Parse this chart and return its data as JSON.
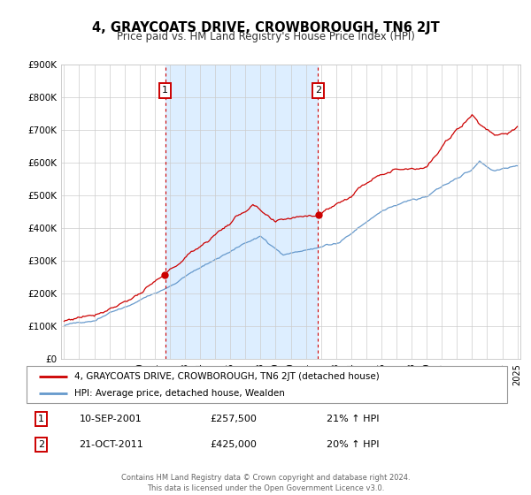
{
  "title": "4, GRAYCOATS DRIVE, CROWBOROUGH, TN6 2JT",
  "subtitle": "Price paid vs. HM Land Registry's House Price Index (HPI)",
  "legend_line1": "4, GRAYCOATS DRIVE, CROWBOROUGH, TN6 2JT (detached house)",
  "legend_line2": "HPI: Average price, detached house, Wealden",
  "marker1_date": "10-SEP-2001",
  "marker1_price": "£257,500",
  "marker1_hpi": "21% ↑ HPI",
  "marker2_date": "21-OCT-2011",
  "marker2_price": "£425,000",
  "marker2_hpi": "20% ↑ HPI",
  "footer1": "Contains HM Land Registry data © Crown copyright and database right 2024.",
  "footer2": "This data is licensed under the Open Government Licence v3.0.",
  "red_color": "#cc0000",
  "blue_color": "#6699cc",
  "shade_color": "#ddeeff",
  "background_color": "#ffffff",
  "grid_color": "#cccccc",
  "marker1_x": 2001.7,
  "marker2_x": 2011.8,
  "ylim": [
    0,
    900000
  ],
  "xlim_start": 1994.8,
  "xlim_end": 2025.2
}
